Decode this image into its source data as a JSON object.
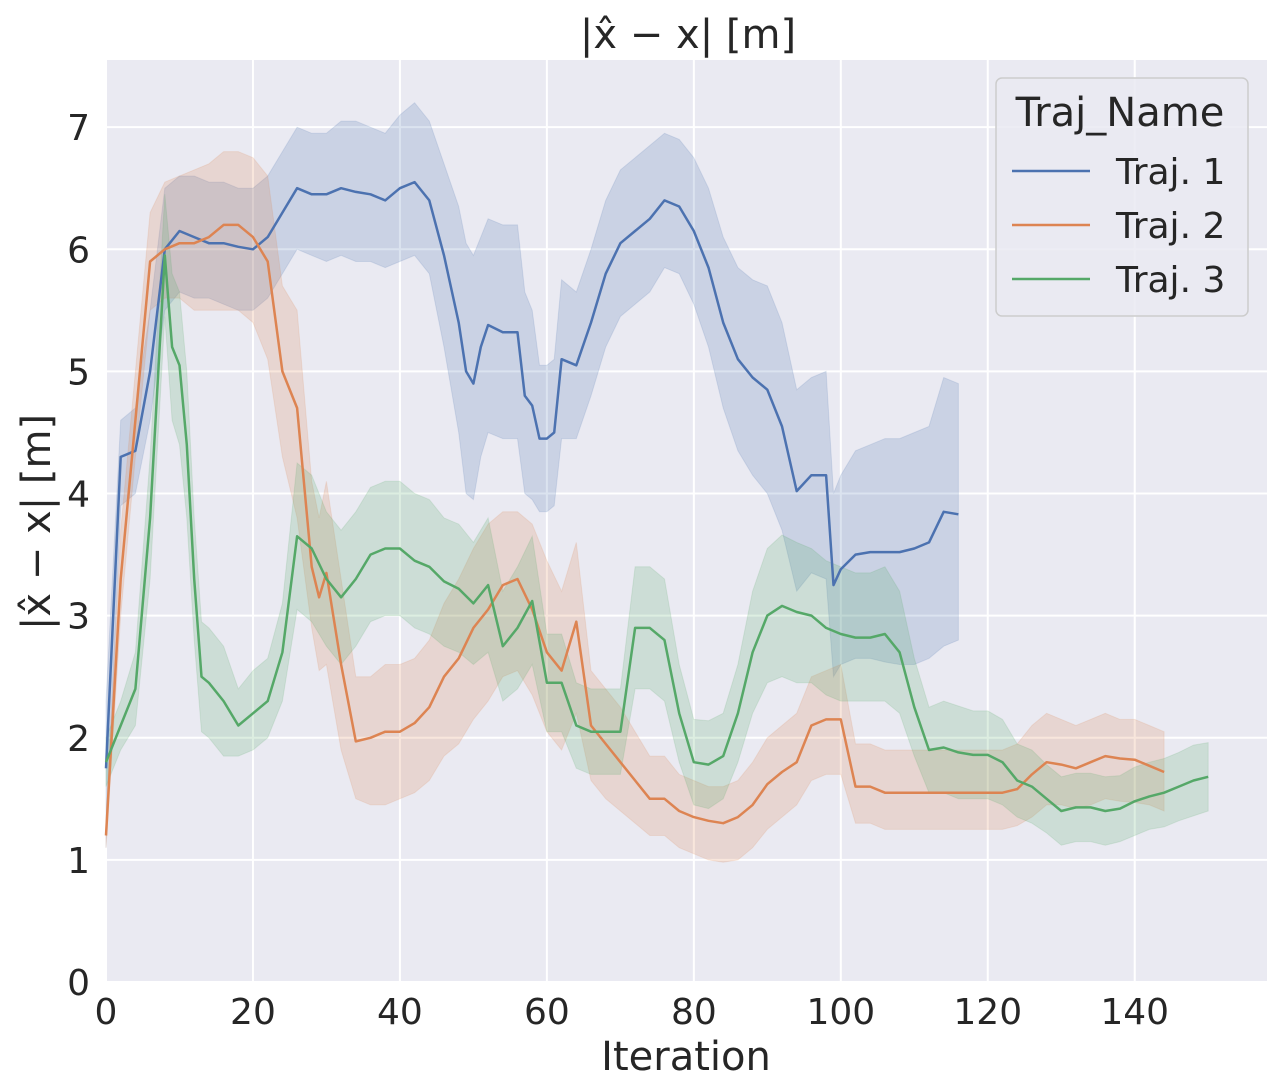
{
  "chart_data": {
    "type": "line",
    "title": "|x̂ − x| [m]",
    "xlabel": "Iteration",
    "ylabel": "|x̂ − x| [m]",
    "xlim": [
      0,
      158
    ],
    "ylim": [
      0,
      7.55
    ],
    "xticks": [
      0,
      20,
      40,
      60,
      80,
      100,
      120,
      140
    ],
    "yticks": [
      0,
      1,
      2,
      3,
      4,
      5,
      6,
      7
    ],
    "grid": true,
    "legend": {
      "title": "Traj_Name",
      "position": "top-right"
    },
    "series": [
      {
        "name": "Traj. 1",
        "color": "#4c72b0",
        "x": [
          0,
          2,
          4,
          6,
          8,
          10,
          12,
          14,
          16,
          18,
          20,
          22,
          24,
          26,
          28,
          30,
          32,
          34,
          36,
          38,
          40,
          42,
          44,
          46,
          48,
          49,
          50,
          51,
          52,
          54,
          56,
          57,
          58,
          59,
          60,
          61,
          62,
          64,
          66,
          68,
          70,
          72,
          74,
          76,
          78,
          80,
          82,
          84,
          86,
          88,
          90,
          92,
          94,
          96,
          98,
          99,
          100,
          102,
          104,
          106,
          108,
          110,
          112,
          114,
          116
        ],
        "y": [
          1.75,
          4.3,
          4.35,
          5.0,
          6.0,
          6.15,
          6.1,
          6.05,
          6.05,
          6.02,
          6.0,
          6.1,
          6.3,
          6.5,
          6.45,
          6.45,
          6.5,
          6.47,
          6.45,
          6.4,
          6.5,
          6.55,
          6.4,
          5.95,
          5.4,
          5.0,
          4.9,
          5.2,
          5.38,
          5.32,
          5.32,
          4.8,
          4.72,
          4.45,
          4.45,
          4.5,
          5.1,
          5.05,
          5.4,
          5.8,
          6.05,
          6.15,
          6.25,
          6.4,
          6.35,
          6.15,
          5.85,
          5.4,
          5.1,
          4.95,
          4.85,
          4.55,
          4.02,
          4.15,
          4.15,
          3.25,
          3.38,
          3.5,
          3.52,
          3.52,
          3.52,
          3.55,
          3.6,
          3.85,
          3.83
        ],
        "ci_low": [
          1.1,
          3.9,
          4.0,
          4.6,
          5.5,
          5.65,
          5.6,
          5.6,
          5.55,
          5.5,
          5.5,
          5.6,
          5.8,
          6.0,
          5.95,
          5.9,
          5.95,
          5.9,
          5.9,
          5.85,
          5.9,
          5.95,
          5.8,
          5.2,
          4.5,
          4.0,
          3.95,
          4.3,
          4.5,
          4.45,
          4.45,
          4.0,
          3.95,
          3.85,
          3.85,
          3.9,
          4.45,
          4.45,
          4.8,
          5.2,
          5.45,
          5.55,
          5.65,
          5.85,
          5.8,
          5.55,
          5.2,
          4.7,
          4.35,
          4.15,
          4.0,
          3.7,
          3.2,
          3.35,
          3.3,
          2.5,
          2.6,
          2.65,
          2.65,
          2.62,
          2.6,
          2.6,
          2.65,
          2.75,
          2.8
        ],
        "ci_high": [
          2.3,
          4.6,
          4.7,
          5.5,
          6.5,
          6.6,
          6.6,
          6.55,
          6.55,
          6.5,
          6.5,
          6.6,
          6.8,
          7.0,
          6.95,
          6.95,
          7.05,
          7.05,
          7.0,
          6.95,
          7.1,
          7.2,
          7.05,
          6.7,
          6.35,
          6.05,
          5.95,
          6.1,
          6.25,
          6.2,
          6.2,
          5.65,
          5.5,
          5.05,
          5.05,
          5.1,
          5.75,
          5.65,
          6.0,
          6.4,
          6.65,
          6.75,
          6.85,
          6.95,
          6.9,
          6.75,
          6.5,
          6.1,
          5.85,
          5.75,
          5.7,
          5.4,
          4.85,
          4.95,
          5.0,
          4.0,
          4.15,
          4.35,
          4.4,
          4.45,
          4.45,
          4.5,
          4.55,
          4.95,
          4.9
        ]
      },
      {
        "name": "Traj. 2",
        "color": "#dd8452",
        "x": [
          0,
          2,
          4,
          6,
          8,
          10,
          12,
          14,
          16,
          18,
          20,
          22,
          24,
          26,
          28,
          29,
          30,
          32,
          34,
          36,
          38,
          40,
          42,
          44,
          46,
          48,
          50,
          52,
          54,
          56,
          58,
          60,
          62,
          64,
          66,
          68,
          70,
          72,
          74,
          76,
          78,
          80,
          82,
          84,
          86,
          88,
          90,
          92,
          94,
          96,
          98,
          100,
          102,
          104,
          106,
          108,
          110,
          112,
          114,
          116,
          118,
          120,
          122,
          124,
          126,
          128,
          130,
          132,
          134,
          136,
          138,
          140,
          142,
          144
        ],
        "y": [
          1.2,
          3.3,
          4.6,
          5.9,
          6.0,
          6.05,
          6.05,
          6.1,
          6.2,
          6.2,
          6.1,
          5.9,
          5.0,
          4.7,
          3.4,
          3.15,
          3.35,
          2.6,
          1.97,
          2.0,
          2.05,
          2.05,
          2.12,
          2.25,
          2.5,
          2.65,
          2.9,
          3.05,
          3.25,
          3.3,
          3.05,
          2.7,
          2.55,
          2.95,
          2.1,
          1.95,
          1.8,
          1.65,
          1.5,
          1.5,
          1.4,
          1.35,
          1.32,
          1.3,
          1.35,
          1.45,
          1.62,
          1.72,
          1.8,
          2.1,
          2.15,
          2.15,
          1.6,
          1.6,
          1.55,
          1.55,
          1.55,
          1.55,
          1.55,
          1.55,
          1.55,
          1.55,
          1.55,
          1.58,
          1.7,
          1.8,
          1.78,
          1.75,
          1.8,
          1.85,
          1.83,
          1.82,
          1.77,
          1.72
        ],
        "ci_low": [
          1.1,
          3.0,
          4.3,
          5.5,
          5.6,
          5.6,
          5.5,
          5.5,
          5.5,
          5.5,
          5.4,
          5.1,
          4.3,
          3.8,
          2.9,
          2.55,
          2.6,
          1.9,
          1.5,
          1.45,
          1.45,
          1.5,
          1.55,
          1.65,
          1.85,
          1.95,
          2.15,
          2.3,
          2.5,
          2.55,
          2.35,
          2.05,
          1.9,
          2.2,
          1.65,
          1.5,
          1.4,
          1.3,
          1.2,
          1.2,
          1.1,
          1.05,
          1.0,
          0.98,
          1.0,
          1.1,
          1.25,
          1.35,
          1.45,
          1.65,
          1.7,
          1.7,
          1.3,
          1.3,
          1.25,
          1.25,
          1.25,
          1.25,
          1.25,
          1.25,
          1.25,
          1.25,
          1.25,
          1.28,
          1.35,
          1.45,
          1.45,
          1.42,
          1.45,
          1.5,
          1.48,
          1.47,
          1.45,
          1.4
        ],
        "ci_high": [
          1.3,
          3.7,
          5.0,
          6.3,
          6.55,
          6.6,
          6.65,
          6.7,
          6.8,
          6.8,
          6.75,
          6.6,
          5.7,
          5.5,
          4.1,
          3.8,
          4.1,
          3.3,
          2.5,
          2.5,
          2.6,
          2.6,
          2.65,
          2.8,
          3.1,
          3.3,
          3.55,
          3.75,
          3.85,
          3.85,
          3.75,
          3.45,
          3.2,
          3.6,
          2.55,
          2.4,
          2.25,
          2.05,
          1.85,
          1.85,
          1.7,
          1.65,
          1.6,
          1.6,
          1.65,
          1.8,
          2.0,
          2.1,
          2.2,
          2.5,
          2.55,
          2.6,
          1.95,
          1.95,
          1.9,
          1.9,
          1.9,
          1.9,
          1.9,
          1.9,
          1.9,
          1.9,
          1.9,
          1.95,
          2.1,
          2.2,
          2.15,
          2.1,
          2.15,
          2.2,
          2.15,
          2.15,
          2.1,
          2.05
        ]
      },
      {
        "name": "Traj. 3",
        "color": "#55a868",
        "x": [
          0,
          2,
          4,
          6,
          8,
          9,
          10,
          11,
          12,
          13,
          14,
          16,
          18,
          20,
          22,
          24,
          26,
          28,
          30,
          32,
          34,
          36,
          38,
          40,
          42,
          44,
          46,
          48,
          50,
          52,
          54,
          56,
          58,
          60,
          62,
          64,
          66,
          68,
          70,
          72,
          74,
          76,
          78,
          80,
          82,
          84,
          86,
          88,
          90,
          92,
          94,
          96,
          98,
          100,
          102,
          104,
          106,
          108,
          110,
          112,
          114,
          116,
          118,
          120,
          122,
          124,
          126,
          128,
          130,
          132,
          134,
          136,
          138,
          140,
          142,
          144,
          146,
          148,
          150
        ],
        "y": [
          1.8,
          2.1,
          2.4,
          3.8,
          5.95,
          5.2,
          5.05,
          4.4,
          3.3,
          2.5,
          2.45,
          2.3,
          2.1,
          2.2,
          2.3,
          2.7,
          3.65,
          3.55,
          3.3,
          3.15,
          3.3,
          3.5,
          3.55,
          3.55,
          3.45,
          3.4,
          3.28,
          3.22,
          3.1,
          3.25,
          2.75,
          2.9,
          3.12,
          2.45,
          2.45,
          2.1,
          2.05,
          2.05,
          2.05,
          2.9,
          2.9,
          2.8,
          2.2,
          1.8,
          1.78,
          1.85,
          2.2,
          2.7,
          3.0,
          3.08,
          3.03,
          3.0,
          2.9,
          2.85,
          2.82,
          2.82,
          2.85,
          2.7,
          2.25,
          1.9,
          1.92,
          1.88,
          1.86,
          1.86,
          1.8,
          1.65,
          1.6,
          1.5,
          1.4,
          1.43,
          1.43,
          1.4,
          1.42,
          1.48,
          1.52,
          1.55,
          1.6,
          1.65,
          1.68
        ],
        "ci_low": [
          1.6,
          1.9,
          2.1,
          3.3,
          5.45,
          4.6,
          4.4,
          3.8,
          2.8,
          2.05,
          2.0,
          1.85,
          1.85,
          1.9,
          2.0,
          2.3,
          3.05,
          2.95,
          2.75,
          2.6,
          2.75,
          2.95,
          3.0,
          3.0,
          2.9,
          2.85,
          2.75,
          2.7,
          2.6,
          2.7,
          2.3,
          2.4,
          2.6,
          2.05,
          2.05,
          1.75,
          1.7,
          1.7,
          1.7,
          2.4,
          2.4,
          2.3,
          1.8,
          1.45,
          1.42,
          1.5,
          1.8,
          2.2,
          2.45,
          2.5,
          2.45,
          2.45,
          2.35,
          2.3,
          2.3,
          2.3,
          2.3,
          2.2,
          1.85,
          1.55,
          1.55,
          1.5,
          1.5,
          1.5,
          1.45,
          1.35,
          1.3,
          1.22,
          1.12,
          1.15,
          1.15,
          1.12,
          1.15,
          1.2,
          1.25,
          1.27,
          1.32,
          1.36,
          1.4
        ],
        "ci_high": [
          2.0,
          2.3,
          2.7,
          4.3,
          6.45,
          5.8,
          5.65,
          5.0,
          3.8,
          2.95,
          2.9,
          2.75,
          2.4,
          2.55,
          2.65,
          3.1,
          4.25,
          4.15,
          3.85,
          3.7,
          3.85,
          4.05,
          4.1,
          4.1,
          4.0,
          3.95,
          3.8,
          3.75,
          3.6,
          3.8,
          3.2,
          3.4,
          3.65,
          2.85,
          2.85,
          2.45,
          2.4,
          2.4,
          2.4,
          3.4,
          3.4,
          3.3,
          2.6,
          2.15,
          2.14,
          2.2,
          2.6,
          3.2,
          3.55,
          3.66,
          3.6,
          3.55,
          3.45,
          3.4,
          3.35,
          3.35,
          3.4,
          3.2,
          2.65,
          2.25,
          2.3,
          2.26,
          2.22,
          2.22,
          2.15,
          1.95,
          1.9,
          1.78,
          1.68,
          1.71,
          1.71,
          1.68,
          1.69,
          1.76,
          1.8,
          1.83,
          1.88,
          1.94,
          1.96
        ]
      }
    ]
  }
}
